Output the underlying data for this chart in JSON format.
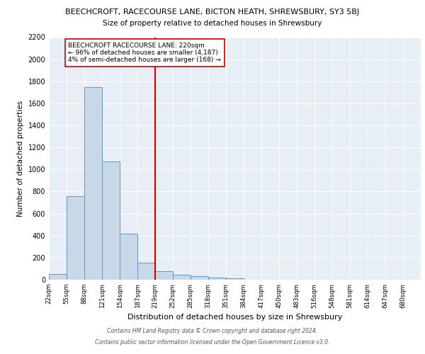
{
  "title_line1": "BEECHCROFT, RACECOURSE LANE, BICTON HEATH, SHREWSBURY, SY3 5BJ",
  "title_line2": "Size of property relative to detached houses in Shrewsbury",
  "xlabel": "Distribution of detached houses by size in Shrewsbury",
  "ylabel": "Number of detached properties",
  "bin_labels": [
    "22sqm",
    "55sqm",
    "88sqm",
    "121sqm",
    "154sqm",
    "187sqm",
    "219sqm",
    "252sqm",
    "285sqm",
    "318sqm",
    "351sqm",
    "384sqm",
    "417sqm",
    "450sqm",
    "483sqm",
    "516sqm",
    "548sqm",
    "581sqm",
    "614sqm",
    "647sqm",
    "680sqm"
  ],
  "bin_edges": [
    22,
    55,
    88,
    121,
    154,
    187,
    219,
    252,
    285,
    318,
    351,
    384,
    417,
    450,
    483,
    516,
    548,
    581,
    614,
    647,
    680
  ],
  "bar_heights": [
    50,
    760,
    1750,
    1070,
    420,
    155,
    80,
    45,
    35,
    22,
    12,
    0,
    0,
    0,
    0,
    0,
    0,
    0,
    0,
    0
  ],
  "bar_color": "#c8d8e8",
  "bar_edge_color": "#6699bb",
  "vline_x": 219,
  "vline_color": "#cc0000",
  "annotation_text": "BEECHCROFT RACECOURSE LANE: 220sqm\n← 96% of detached houses are smaller (4,187)\n4% of semi-detached houses are larger (168) →",
  "annotation_box_color": "#ffffff",
  "annotation_box_edge": "#cc0000",
  "ylim": [
    0,
    2200
  ],
  "yticks": [
    0,
    200,
    400,
    600,
    800,
    1000,
    1200,
    1400,
    1600,
    1800,
    2000,
    2200
  ],
  "bg_color": "#e8eef5",
  "footer_line1": "Contains HM Land Registry data © Crown copyright and database right 2024.",
  "footer_line2": "Contains public sector information licensed under the Open Government Licence v3.0."
}
